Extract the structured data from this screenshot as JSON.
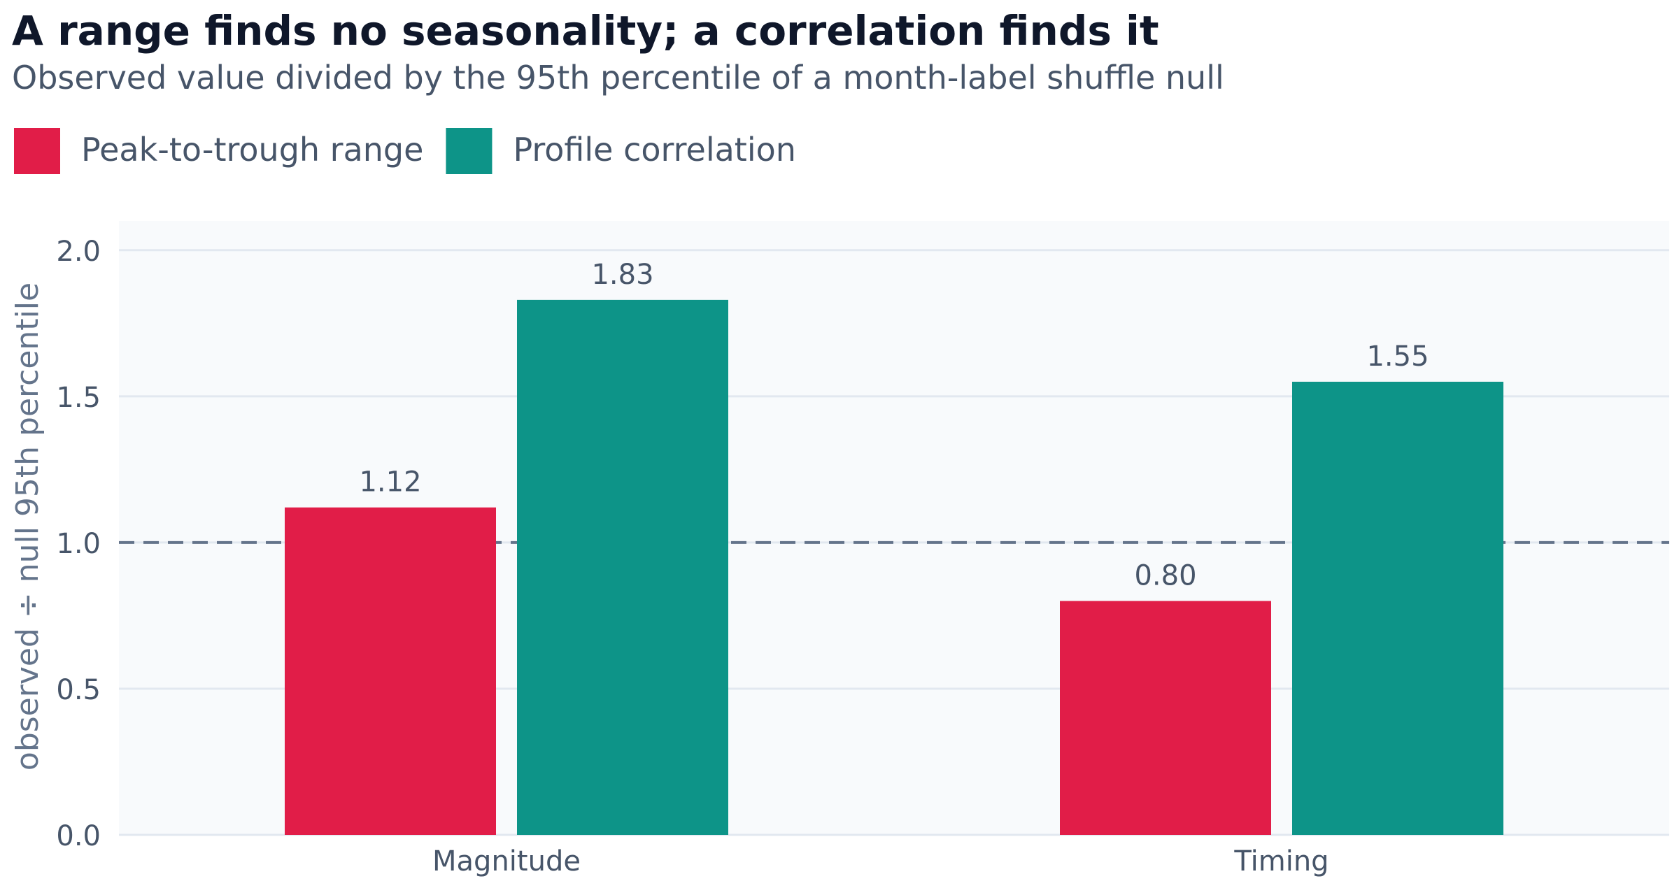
{
  "chart_data": {
    "type": "bar",
    "title": "A range finds no seasonality; a correlation finds it",
    "subtitle": "Observed value divided by the 95th percentile of a month-label shuffle null",
    "ylabel": "observed ÷ null 95th percentile",
    "xlabel": "",
    "categories": [
      "Magnitude",
      "Timing"
    ],
    "series": [
      {
        "name": "Peak-to-trough range",
        "color": "#e11d48",
        "values": [
          1.12,
          0.8
        ],
        "labels": [
          "1.12",
          "0.80"
        ]
      },
      {
        "name": "Profile correlation",
        "color": "#0d9488",
        "values": [
          1.83,
          1.55
        ],
        "labels": [
          "1.83",
          "1.55"
        ]
      }
    ],
    "ylim": [
      0,
      2.1
    ],
    "yticks": [
      0.0,
      0.5,
      1.0,
      1.5,
      2.0
    ],
    "ytick_labels": [
      "0.0",
      "0.5",
      "1.0",
      "1.5",
      "2.0"
    ],
    "reference_line": 1.0,
    "grid": true,
    "legend_position": "top-left"
  }
}
